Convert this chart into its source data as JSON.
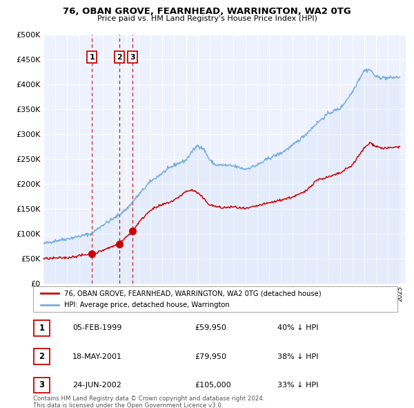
{
  "title": "76, OBAN GROVE, FEARNHEAD, WARRINGTON, WA2 0TG",
  "subtitle": "Price paid vs. HM Land Registry's House Price Index (HPI)",
  "legend_label_red": "76, OBAN GROVE, FEARNHEAD, WARRINGTON, WA2 0TG (detached house)",
  "legend_label_blue": "HPI: Average price, detached house, Warrington",
  "footer1": "Contains HM Land Registry data © Crown copyright and database right 2024.",
  "footer2": "This data is licensed under the Open Government Licence v3.0.",
  "transactions": [
    {
      "num": "1",
      "date": "05-FEB-1999",
      "price": "£59,950",
      "pct": "40% ↓ HPI",
      "year": 1999.09
    },
    {
      "num": "2",
      "date": "18-MAY-2001",
      "price": "£79,950",
      "pct": "38% ↓ HPI",
      "year": 2001.37
    },
    {
      "num": "3",
      "date": "24-JUN-2002",
      "price": "£105,000",
      "pct": "33% ↓ HPI",
      "year": 2002.48
    }
  ],
  "transaction_prices": [
    59950,
    79950,
    105000
  ],
  "transaction_years": [
    1999.09,
    2001.37,
    2002.48
  ],
  "vline_years": [
    1999.09,
    2001.37,
    2002.48
  ],
  "ylim": [
    0,
    500000
  ],
  "xlim_left": 1995.0,
  "xlim_right": 2025.5,
  "yticks": [
    0,
    50000,
    100000,
    150000,
    200000,
    250000,
    300000,
    350000,
    400000,
    450000,
    500000
  ],
  "bg_color": "#eef2ff",
  "red_color": "#cc0000",
  "blue_color": "#7aaddc",
  "grid_color": "#ffffff",
  "vline_color": "#cc0000",
  "hpi_key_years": [
    1995,
    1996,
    1997,
    1998,
    1999,
    2000,
    2001,
    2002,
    2003,
    2004,
    2005,
    2006,
    2007,
    2007.5,
    2008,
    2008.5,
    2009,
    2009.5,
    2010,
    2011,
    2012,
    2013,
    2014,
    2015,
    2016,
    2017,
    2018,
    2019,
    2020,
    2021,
    2021.5,
    2022,
    2022.5,
    2023,
    2024,
    2025
  ],
  "hpi_key_values": [
    80000,
    86000,
    90000,
    95000,
    100000,
    118000,
    132000,
    150000,
    178000,
    205000,
    222000,
    238000,
    248000,
    265000,
    278000,
    270000,
    248000,
    238000,
    238000,
    236000,
    230000,
    238000,
    252000,
    262000,
    278000,
    298000,
    322000,
    342000,
    352000,
    385000,
    408000,
    428000,
    430000,
    415000,
    413000,
    415000
  ],
  "red_key_years": [
    1995,
    1997,
    1999.09,
    1999.5,
    2001.37,
    2002.48,
    2003,
    2004,
    2005,
    2006,
    2007,
    2007.5,
    2008,
    2009,
    2010,
    2011,
    2012,
    2013,
    2014,
    2015,
    2016,
    2017,
    2018,
    2019,
    2020,
    2021,
    2022,
    2022.5,
    2023,
    2023.5,
    2024,
    2025
  ],
  "red_key_values": [
    50000,
    52000,
    59950,
    62000,
    79950,
    105000,
    122000,
    148000,
    158000,
    167000,
    185000,
    188000,
    182000,
    158000,
    152000,
    154000,
    150000,
    156000,
    162000,
    168000,
    174000,
    184000,
    208000,
    214000,
    222000,
    238000,
    272000,
    283000,
    276000,
    272000,
    272000,
    275000
  ]
}
